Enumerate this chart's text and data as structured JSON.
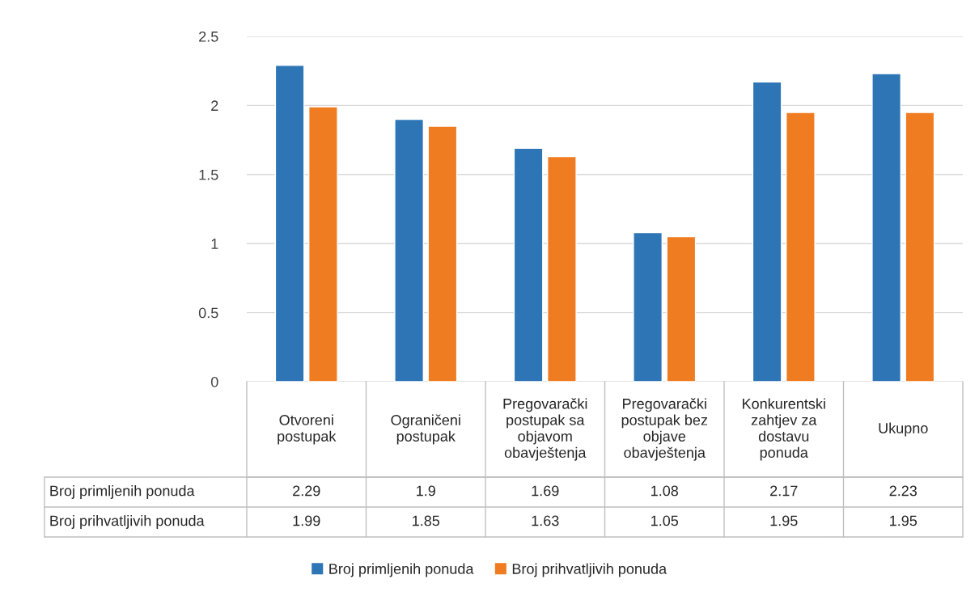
{
  "chart_data": {
    "type": "bar",
    "categories": [
      "Otvoreni\npostupak",
      "Ograničeni\npostupak",
      "Pregovarački\npostupak sa\nobjavom\nobavještenja",
      "Pregovarački\npostupak bez\nobjave\nobavještenja",
      "Konkurentski\nzahtjev za\ndostavu\nponuda",
      "Ukupno"
    ],
    "series": [
      {
        "name": "Broj primljenih ponuda",
        "color": "#2e75b6",
        "values": [
          2.29,
          1.9,
          1.69,
          1.08,
          2.17,
          2.23
        ]
      },
      {
        "name": "Broj prihvatljivih ponuda",
        "color": "#f07c22",
        "values": [
          1.99,
          1.85,
          1.63,
          1.05,
          1.95,
          1.95
        ]
      }
    ],
    "ylim": [
      0,
      2.5
    ],
    "yticks": [
      0,
      0.5,
      1,
      1.5,
      2,
      2.5
    ],
    "grid": "y",
    "legend": "bottom",
    "data_labels": true
  }
}
